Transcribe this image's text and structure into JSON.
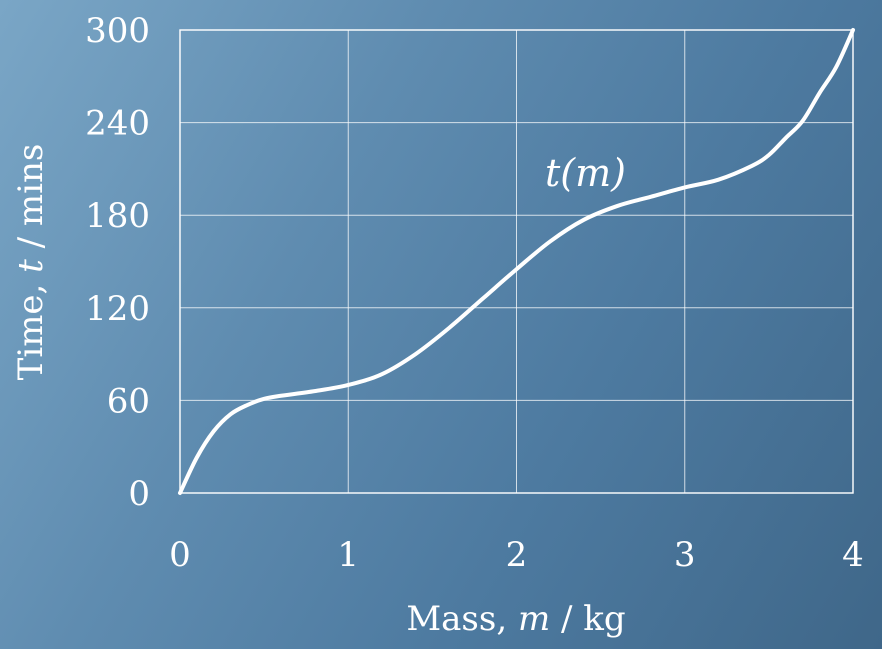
{
  "chart_data": {
    "type": "line",
    "title": "",
    "xlabel_parts": [
      "Mass, ",
      "m",
      " / kg"
    ],
    "ylabel_parts": [
      "Time, ",
      "t",
      " / mins"
    ],
    "xlim": [
      0,
      4
    ],
    "ylim": [
      0,
      300
    ],
    "x_ticks": [
      "0",
      "1",
      "2",
      "3",
      "4"
    ],
    "y_ticks": [
      "0",
      "60",
      "120",
      "180",
      "240",
      "300"
    ],
    "grid": true,
    "series": [
      {
        "name": "t(m)",
        "x": [
          0,
          0.1,
          0.2,
          0.3,
          0.4,
          0.5,
          0.6,
          0.8,
          1.0,
          1.2,
          1.4,
          1.6,
          1.8,
          2.0,
          2.2,
          2.4,
          2.6,
          2.8,
          3.0,
          3.2,
          3.4,
          3.5,
          3.6,
          3.7,
          3.8,
          3.9,
          4.0
        ],
        "y": [
          0,
          23,
          40,
          51,
          57,
          61,
          63,
          66,
          70,
          77,
          90,
          107,
          126,
          145,
          163,
          177,
          186,
          192,
          198,
          203,
          212,
          219,
          230,
          241,
          259,
          276,
          300
        ]
      }
    ],
    "colors": {
      "curve": "#ffffff",
      "grid": "#ffffff",
      "text": "#ffffff"
    }
  }
}
